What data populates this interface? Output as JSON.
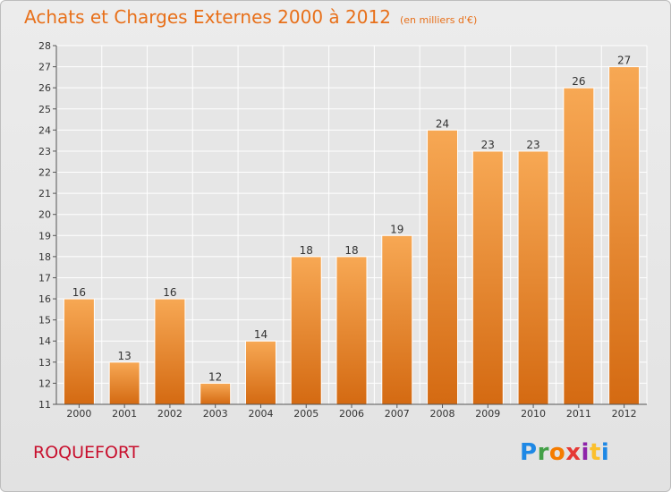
{
  "header": {
    "title": "Achats et Charges Externes 2000 à 2012",
    "subtitle": "(en milliers d'€)"
  },
  "footer": {
    "commune": "ROQUEFORT",
    "logo": "Proxiti"
  },
  "colors": {
    "title": "#e8701a",
    "commune": "#c8102e",
    "bar_top": "#f7a854",
    "bar_bottom": "#d46a12"
  },
  "chart_data": {
    "type": "bar",
    "title": "Achats et Charges Externes 2000 à 2012",
    "subtitle": "(en milliers d'€)",
    "categories": [
      "2000",
      "2001",
      "2002",
      "2003",
      "2004",
      "2005",
      "2006",
      "2007",
      "2008",
      "2009",
      "2010",
      "2011",
      "2012"
    ],
    "values": [
      16,
      13,
      16,
      12,
      14,
      18,
      18,
      19,
      24,
      23,
      23,
      26,
      27
    ],
    "ylim": [
      11,
      28
    ],
    "yticks": [
      11,
      12,
      13,
      14,
      15,
      16,
      17,
      18,
      19,
      20,
      21,
      22,
      23,
      24,
      25,
      26,
      27,
      28
    ],
    "grid": true,
    "data_labels": true
  }
}
